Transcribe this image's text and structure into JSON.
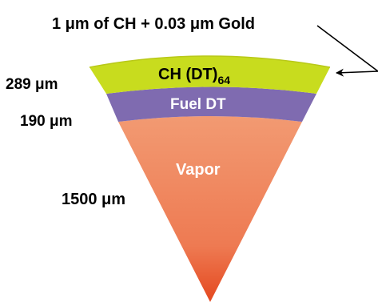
{
  "annotation": {
    "coating_label": "1 μm of CH + 0.03 μm Gold"
  },
  "layers": {
    "ablator": {
      "label_main": "CH (DT)",
      "label_sub": "64",
      "thickness_label": "289 μm",
      "color": "#c8dc1e"
    },
    "fuel": {
      "label": "Fuel DT",
      "thickness_label": "190 μm",
      "color": "#7f6bb0"
    },
    "vapor": {
      "label": "Vapor",
      "radius_label": "1500 μm",
      "color_outer": "#f0956a",
      "color_inner": "#e8502a"
    }
  }
}
